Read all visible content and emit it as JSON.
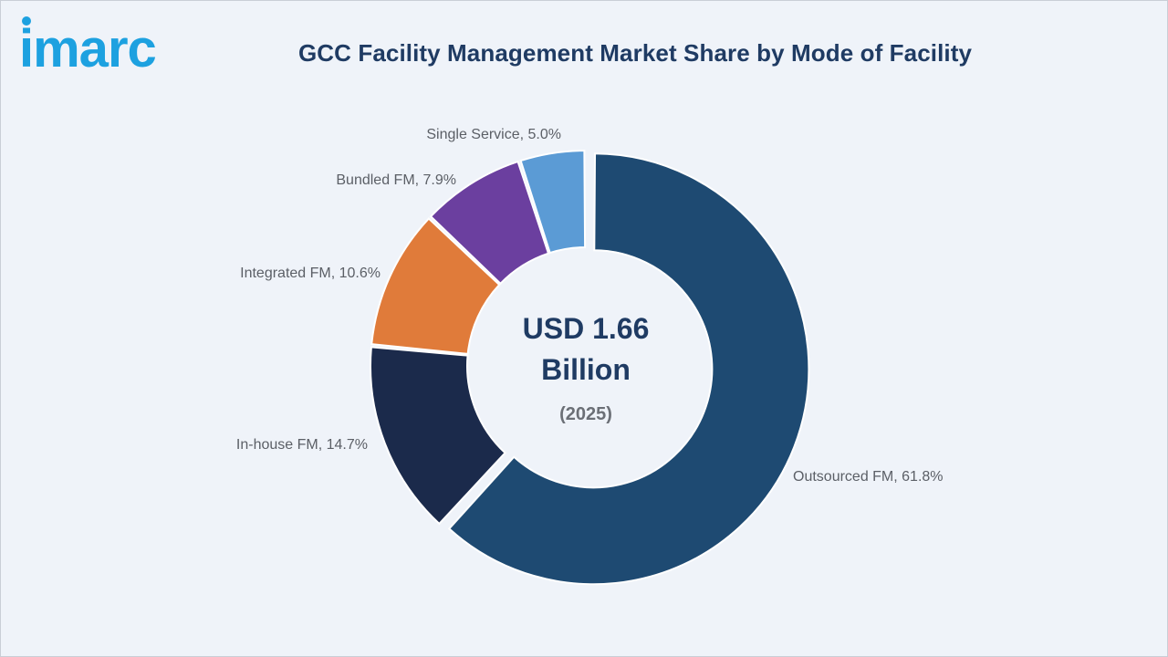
{
  "brand": {
    "name": "imarc",
    "color": "#1da1e0"
  },
  "chart_data": {
    "type": "pie",
    "variant": "donut",
    "title": "GCC Facility Management Market Share by Mode of Facility",
    "center_text": {
      "line1": "USD 1.66",
      "line2": "Billion",
      "year": "(2025)"
    },
    "slices": [
      {
        "name": "Outsourced FM",
        "value": 61.8,
        "label": "Outsourced FM, 61.8%",
        "color": "#1e4a72",
        "exploded": true
      },
      {
        "name": "In-house FM",
        "value": 14.7,
        "label": "In-house FM, 14.7%",
        "color": "#1b2a4b",
        "exploded": false
      },
      {
        "name": "Integrated FM",
        "value": 10.6,
        "label": "Integrated FM, 10.6%",
        "color": "#e07b3a",
        "exploded": false
      },
      {
        "name": "Bundled FM",
        "value": 7.9,
        "label": "Bundled FM, 7.9%",
        "color": "#6b3f9f",
        "exploded": false
      },
      {
        "name": "Single Service",
        "value": 5.0,
        "label": "Single Service, 5.0%",
        "color": "#5b9bd5",
        "exploded": false
      }
    ],
    "legend": "none"
  }
}
